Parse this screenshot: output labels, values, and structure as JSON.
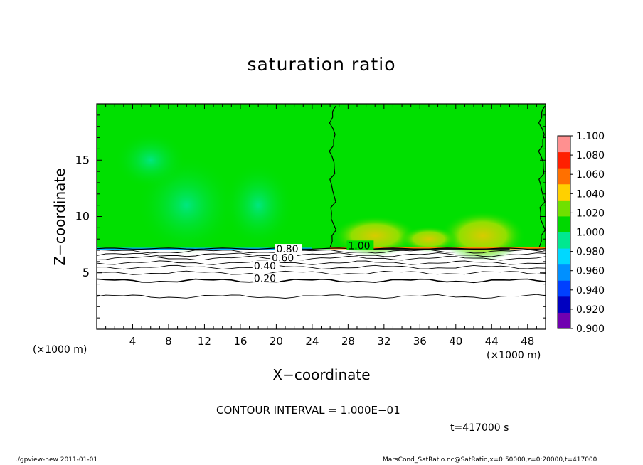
{
  "title": "saturation ratio",
  "xlabel": "X−coordinate",
  "ylabel": "Z−coordinate",
  "x_unit_left": "(×1000 m)",
  "x_unit_right": "(×1000 m)",
  "contour_interval": "CONTOUR INTERVAL = 1.000E−01",
  "time_label": "t=417000 s",
  "footer_left": "./gpview-new  2011-01-01",
  "footer_right": "MarsCond_SatRatio.nc@SatRatio,x=0:50000,z=0:20000,t=417000",
  "chart_data": {
    "type": "heatmap",
    "title": "saturation ratio",
    "xlabel": "X−coordinate",
    "ylabel": "Z−coordinate",
    "xunit": "(×1000 m)",
    "xlim": [
      0,
      50
    ],
    "ylim": [
      0,
      20
    ],
    "xticks": [
      4,
      8,
      12,
      16,
      20,
      24,
      28,
      32,
      36,
      40,
      44,
      48
    ],
    "yticks": [
      5,
      10,
      15
    ],
    "contour_interval": 0.1,
    "time_s": 417000,
    "contour_levels_labeled": [
      {
        "label": "1.00",
        "x": 28,
        "z": 7.3
      },
      {
        "label": "0.80",
        "x": 20,
        "z": 7.0
      },
      {
        "label": "0.60",
        "x": 19.5,
        "z": 6.2
      },
      {
        "label": "0.40",
        "x": 17.5,
        "z": 5.5
      },
      {
        "label": "0.20",
        "x": 17.5,
        "z": 4.4
      }
    ],
    "contour_lines_z": [
      {
        "level": 0.1,
        "z": 2.9
      },
      {
        "level": 0.2,
        "z": 4.3
      },
      {
        "level": 0.3,
        "z": 5.0
      },
      {
        "level": 0.4,
        "z": 5.5
      },
      {
        "level": 0.5,
        "z": 5.9
      },
      {
        "level": 0.6,
        "z": 6.3
      },
      {
        "level": 0.7,
        "z": 6.6
      },
      {
        "level": 0.8,
        "z": 6.9
      }
    ],
    "saturated_layer_base_z": 7.1,
    "colorbar": {
      "min": 0.9,
      "max": 1.1,
      "tick_labels": [
        "1.100",
        "1.080",
        "1.060",
        "1.040",
        "1.020",
        "1.000",
        "0.980",
        "0.960",
        "0.940",
        "0.920",
        "0.900"
      ],
      "colors": [
        "#7000b0",
        "#0000c0",
        "#0040ff",
        "#0090ff",
        "#00d8ff",
        "#00e890",
        "#00d800",
        "#70e000",
        "#ffd000",
        "#ff7000",
        "#ff2000",
        "#ff9090"
      ]
    },
    "background_color": "#00e000"
  }
}
